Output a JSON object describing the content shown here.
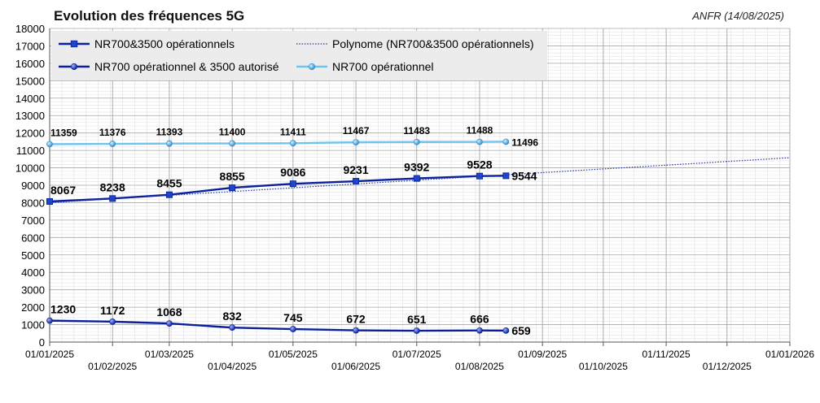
{
  "chart_data": {
    "type": "line",
    "title": "Evolution des fréquences 5G",
    "source": "ANFR (14/08/2025)",
    "xlabel": "",
    "ylabel": "",
    "ylim": [
      0,
      18000
    ],
    "xlim": [
      "2025-01-01",
      "2026-01-01"
    ],
    "y_ticks": [
      0,
      1000,
      2000,
      3000,
      4000,
      5000,
      6000,
      7000,
      8000,
      9000,
      10000,
      11000,
      12000,
      13000,
      14000,
      15000,
      16000,
      17000,
      18000
    ],
    "x_ticks": [
      "2025-01-01",
      "2025-02-01",
      "2025-03-01",
      "2025-04-01",
      "2025-05-01",
      "2025-06-01",
      "2025-07-01",
      "2025-08-01",
      "2025-09-01",
      "2025-10-01",
      "2025-11-01",
      "2025-12-01",
      "2026-01-01"
    ],
    "x_tick_labels": [
      "01/01/2025",
      "01/02/2025",
      "01/03/2025",
      "01/04/2025",
      "01/05/2025",
      "01/06/2025",
      "01/07/2025",
      "01/08/2025",
      "01/09/2025",
      "01/10/2025",
      "01/11/2025",
      "01/12/2025",
      "01/01/2026"
    ],
    "grid": true,
    "legend_position": "top-left",
    "series": [
      {
        "name": "NR700&3500 opérationnels",
        "color": "#0a1f9c",
        "marker": "square",
        "x": [
          "2025-01-01",
          "2025-02-01",
          "2025-03-01",
          "2025-04-01",
          "2025-05-01",
          "2025-06-01",
          "2025-07-01",
          "2025-08-01",
          "2025-08-14"
        ],
        "values": [
          8067,
          8238,
          8455,
          8855,
          9086,
          9231,
          9392,
          9528,
          9544
        ]
      },
      {
        "name": "NR700 opérationnel & 3500 autorisé",
        "color": "#0a1f9c",
        "marker": "circle",
        "x": [
          "2025-01-01",
          "2025-02-01",
          "2025-03-01",
          "2025-04-01",
          "2025-05-01",
          "2025-06-01",
          "2025-07-01",
          "2025-08-01",
          "2025-08-14"
        ],
        "values": [
          1230,
          1172,
          1068,
          832,
          745,
          672,
          651,
          666,
          659
        ]
      },
      {
        "name": "NR700 opérationnel",
        "color": "#6ec3f0",
        "marker": "circle",
        "x": [
          "2025-01-01",
          "2025-02-01",
          "2025-03-01",
          "2025-04-01",
          "2025-05-01",
          "2025-06-01",
          "2025-07-01",
          "2025-08-01",
          "2025-08-14"
        ],
        "values": [
          11359,
          11376,
          11393,
          11400,
          11411,
          11467,
          11483,
          11488,
          11496
        ]
      },
      {
        "name": "Polynome (NR700&3500 opérationnels)",
        "color": "#2233aa",
        "style": "dotted",
        "x": [
          "2025-01-01",
          "2025-08-14",
          "2026-01-01"
        ],
        "values": [
          8000,
          9600,
          10580
        ]
      }
    ]
  }
}
